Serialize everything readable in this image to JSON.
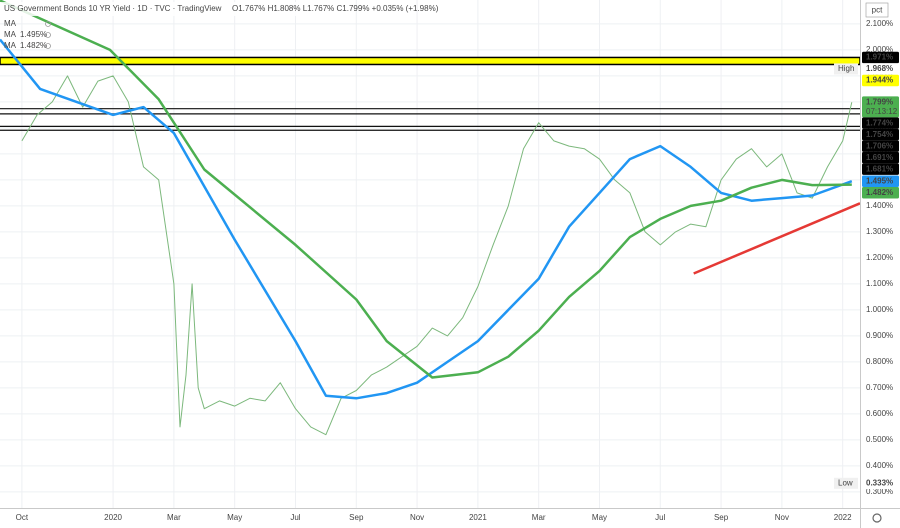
{
  "chart_data": {
    "type": "line",
    "title": "US Government Bonds 10 YR Yield · 1D · TVC · TradingView",
    "ohlc": "O1.767% H1.808% L1.767% C1.799% +0.035% (+1.98%)",
    "legend": [
      {
        "name": "MA"
      },
      {
        "name": "MA",
        "value": "1.495%",
        "color": "#2196f3"
      },
      {
        "name": "MA",
        "value": "1.482%",
        "color": "#4caf50"
      }
    ],
    "axis_unit": "pct",
    "xlim": [
      -0.72,
      27.57
    ],
    "xticks": [
      {
        "value": 0,
        "label": "Oct"
      },
      {
        "value": 3,
        "label": "2020"
      },
      {
        "value": 5,
        "label": "Mar"
      },
      {
        "value": 7,
        "label": "May"
      },
      {
        "value": 9,
        "label": "Jul"
      },
      {
        "value": 11,
        "label": "Sep"
      },
      {
        "value": 13,
        "label": "Nov"
      },
      {
        "value": 15,
        "label": "2021"
      },
      {
        "value": 17,
        "label": "Mar"
      },
      {
        "value": 19,
        "label": "May"
      },
      {
        "value": 21,
        "label": "Jul"
      },
      {
        "value": 23,
        "label": "Sep"
      },
      {
        "value": 25,
        "label": "Nov"
      },
      {
        "value": 27,
        "label": "2022"
      }
    ],
    "ylim": [
      0.238,
      2.192
    ],
    "yticks": [
      {
        "value": 0.3,
        "label": "0.300%"
      },
      {
        "value": 0.4,
        "label": "0.400%"
      },
      {
        "value": 0.5,
        "label": "0.500%"
      },
      {
        "value": 0.6,
        "label": "0.600%"
      },
      {
        "value": 0.7,
        "label": "0.700%"
      },
      {
        "value": 0.8,
        "label": "0.800%"
      },
      {
        "value": 0.9,
        "label": "0.900%"
      },
      {
        "value": 1.0,
        "label": "1.000%"
      },
      {
        "value": 1.1,
        "label": "1.100%"
      },
      {
        "value": 1.2,
        "label": "1.200%"
      },
      {
        "value": 1.3,
        "label": "1.300%"
      },
      {
        "value": 1.4,
        "label": "1.400%"
      },
      {
        "value": 1.5,
        "label": "1.500%"
      },
      {
        "value": 1.6,
        "label": "1.600%"
      },
      {
        "value": 1.7,
        "label": "1.700%"
      },
      {
        "value": 1.8,
        "label": "1.800%"
      },
      {
        "value": 1.9,
        "label": "1.900%"
      },
      {
        "value": 2.0,
        "label": "2.000%"
      },
      {
        "value": 2.1,
        "label": "2.100%"
      }
    ],
    "grid": true,
    "series": [
      {
        "color": "#7cb87c",
        "width": 1,
        "x": [
          0,
          0.5,
          1,
          1.5,
          2,
          2.5,
          3,
          3.5,
          4,
          4.5,
          5,
          5.2,
          5.4,
          5.6,
          5.8,
          6,
          6.5,
          7,
          7.5,
          8,
          8.5,
          9,
          9.5,
          10,
          10.5,
          11,
          11.5,
          12,
          12.5,
          13,
          13.5,
          14,
          14.5,
          15,
          15.5,
          16,
          16.5,
          17,
          17.5,
          18,
          18.5,
          19,
          19.5,
          20,
          20.5,
          21,
          21.5,
          22,
          22.5,
          23,
          23.5,
          24,
          24.5,
          25,
          25.5,
          26,
          26.5,
          27,
          27.3
        ],
        "values": [
          1.65,
          1.75,
          1.8,
          1.9,
          1.78,
          1.88,
          1.9,
          1.8,
          1.55,
          1.5,
          1.1,
          0.55,
          0.75,
          1.1,
          0.7,
          0.62,
          0.65,
          0.63,
          0.66,
          0.65,
          0.72,
          0.62,
          0.55,
          0.52,
          0.66,
          0.69,
          0.75,
          0.78,
          0.82,
          0.86,
          0.93,
          0.9,
          0.97,
          1.09,
          1.25,
          1.4,
          1.62,
          1.72,
          1.65,
          1.63,
          1.62,
          1.58,
          1.5,
          1.45,
          1.3,
          1.25,
          1.3,
          1.33,
          1.32,
          1.5,
          1.58,
          1.62,
          1.55,
          1.6,
          1.45,
          1.43,
          1.55,
          1.65,
          1.799
        ]
      },
      {
        "color": "#2196f3",
        "width": 2.5,
        "x": [
          -0.72,
          0.6,
          3,
          4,
          5,
          7,
          9,
          10,
          11,
          12,
          13,
          14,
          15,
          16,
          17,
          18,
          19,
          20,
          21,
          22,
          23,
          24,
          25,
          26,
          27.3
        ],
        "values": [
          2.04,
          1.85,
          1.75,
          1.78,
          1.68,
          1.27,
          0.88,
          0.67,
          0.66,
          0.68,
          0.72,
          0.8,
          0.88,
          1.0,
          1.12,
          1.32,
          1.45,
          1.58,
          1.63,
          1.55,
          1.45,
          1.42,
          1.43,
          1.44,
          1.495
        ]
      },
      {
        "color": "#4caf50",
        "width": 2.5,
        "x": [
          -0.72,
          2.9,
          4.5,
          6,
          9,
          11,
          12,
          13.5,
          15,
          16,
          17,
          18,
          19,
          20,
          21,
          22,
          23,
          24,
          25,
          26,
          27.3
        ],
        "values": [
          2.19,
          2.0,
          1.81,
          1.54,
          1.25,
          1.04,
          0.88,
          0.74,
          0.76,
          0.82,
          0.92,
          1.05,
          1.15,
          1.28,
          1.35,
          1.4,
          1.42,
          1.47,
          1.5,
          1.48,
          1.482
        ]
      },
      {
        "color": "#e53935",
        "width": 2.5,
        "x": [
          22.1,
          27.57
        ],
        "values": [
          1.14,
          1.41
        ]
      }
    ],
    "bands": [
      {
        "from": 1.944,
        "to": 1.971,
        "color": "#ffff00"
      }
    ],
    "levels": [
      1.774,
      1.754,
      1.706,
      1.691
    ],
    "axis_tags": [
      {
        "value": 1.971,
        "label": "1.971%",
        "bg": "#000000",
        "fg": "#ffffff"
      },
      {
        "value": 1.968,
        "label": "1.968%",
        "bg": "#ffffff",
        "fg": "#333333",
        "note": "High"
      },
      {
        "value": 1.944,
        "label": "1.944%",
        "bg": "#ffff00",
        "fg": "#000000"
      },
      {
        "value": 1.799,
        "label": "1.799%",
        "bg": "#4caf50",
        "fg": "#ffffff",
        "timer": "07:13:12"
      },
      {
        "value": 1.774,
        "label": "1.774%",
        "bg": "#000000",
        "fg": "#ffffff"
      },
      {
        "value": 1.754,
        "label": "1.754%",
        "bg": "#000000",
        "fg": "#ffffff"
      },
      {
        "value": 1.706,
        "label": "1.706%",
        "bg": "#000000",
        "fg": "#ffffff"
      },
      {
        "value": 1.691,
        "label": "1.691%",
        "bg": "#000000",
        "fg": "#ffffff"
      },
      {
        "value": 1.681,
        "label": "1.681%",
        "bg": "#000000",
        "fg": "#ffffff"
      },
      {
        "value": 1.495,
        "label": "1.495%",
        "bg": "#2196f3",
        "fg": "#ffffff"
      },
      {
        "value": 1.482,
        "label": "1.482%",
        "bg": "#4caf50",
        "fg": "#ffffff"
      },
      {
        "value": 0.333,
        "label": "0.333%",
        "bg": "#ffffff",
        "fg": "#333333",
        "note": "Low"
      }
    ]
  }
}
